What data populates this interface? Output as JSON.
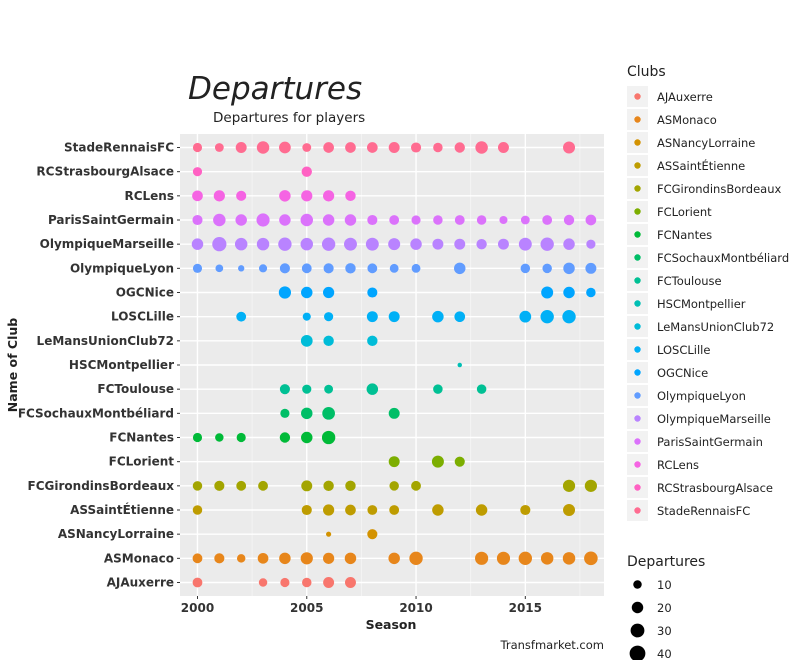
{
  "chart_data": {
    "type": "scatter",
    "title": "Departures",
    "subtitle": "Departures for players",
    "xlabel": "Season",
    "ylabel": "Name of Club",
    "caption": "Transfmarket.com",
    "xlim": [
      1999.2,
      2018.6
    ],
    "x_ticks": [
      2000,
      2005,
      2010,
      2015
    ],
    "grid": true,
    "legend_position": "right",
    "color_legend_title": "Clubs",
    "size_legend_title": "Departures",
    "size_legend_values": [
      10,
      20,
      30,
      40
    ],
    "categories": [
      "AJAuxerre",
      "ASMonaco",
      "ASNancyLorraine",
      "ASSaintÉtienne",
      "FCGirondinsBordeaux",
      "FCLorient",
      "FCNantes",
      "FCSochauxMontbéliard",
      "FCToulouse",
      "HSCMontpellier",
      "LeMansUnionClub72",
      "LOSCLille",
      "OGCNice",
      "OlympiqueLyon",
      "OlympiqueMarseille",
      "ParisSaintGermain",
      "RCLens",
      "RCStrasbourgAlsace",
      "StadeRennaisFC"
    ],
    "series": [
      {
        "name": "AJAuxerre",
        "color": "#F8766D",
        "x": [
          2000,
          2003,
          2004,
          2005,
          2006,
          2007
        ],
        "departures": [
          14,
          10,
          12,
          13,
          18,
          18
        ]
      },
      {
        "name": "ASMonaco",
        "color": "#E7861B",
        "x": [
          2000,
          2001,
          2002,
          2003,
          2004,
          2005,
          2006,
          2007,
          2009,
          2010,
          2013,
          2014,
          2015,
          2016,
          2017,
          2018
        ],
        "departures": [
          14,
          15,
          10,
          17,
          20,
          23,
          19,
          20,
          20,
          28,
          27,
          27,
          28,
          24,
          24,
          29
        ]
      },
      {
        "name": "ASNancyLorraine",
        "color": "#D39200",
        "x": [
          2006,
          2008
        ],
        "departures": [
          3,
          15
        ]
      },
      {
        "name": "ASSaintÉtienne",
        "color": "#BE9C00",
        "x": [
          2000,
          2005,
          2006,
          2007,
          2008,
          2009,
          2011,
          2013,
          2015,
          2017
        ],
        "departures": [
          13,
          15,
          19,
          17,
          14,
          14,
          20,
          20,
          15,
          22
        ]
      },
      {
        "name": "FCGirondinsBordeaux",
        "color": "#A3A500",
        "x": [
          2000,
          2001,
          2002,
          2003,
          2005,
          2006,
          2007,
          2009,
          2010,
          2017,
          2018
        ],
        "departures": [
          13,
          15,
          14,
          14,
          18,
          16,
          16,
          13,
          14,
          23,
          23
        ]
      },
      {
        "name": "FCLorient",
        "color": "#7CAE00",
        "x": [
          2009,
          2011,
          2012
        ],
        "departures": [
          18,
          22,
          15
        ]
      },
      {
        "name": "FCNantes",
        "color": "#00BA38",
        "x": [
          2000,
          2001,
          2002,
          2004,
          2005,
          2006
        ],
        "departures": [
          12,
          10,
          12,
          16,
          20,
          28
        ]
      },
      {
        "name": "FCSochauxMontbéliard",
        "color": "#00BE67",
        "x": [
          2004,
          2005,
          2006,
          2009
        ],
        "departures": [
          12,
          20,
          25,
          18
        ]
      },
      {
        "name": "FCToulouse",
        "color": "#00C094",
        "x": [
          2004,
          2005,
          2006,
          2008,
          2011,
          2013
        ],
        "departures": [
          15,
          12,
          11,
          20,
          13,
          13
        ]
      },
      {
        "name": "HSCMontpellier",
        "color": "#00BFB4",
        "x": [
          2012
        ],
        "departures": [
          2
        ]
      },
      {
        "name": "LeMansUnionClub72",
        "color": "#00BCD8",
        "x": [
          2005,
          2006,
          2008
        ],
        "departures": [
          21,
          16,
          16
        ]
      },
      {
        "name": "LOSCLille",
        "color": "#00B0F6",
        "x": [
          2002,
          2005,
          2006,
          2008,
          2009,
          2011,
          2012,
          2015,
          2016,
          2017
        ],
        "departures": [
          14,
          9,
          12,
          18,
          18,
          20,
          17,
          21,
          28,
          28
        ]
      },
      {
        "name": "OGCNice",
        "color": "#00A5FF",
        "x": [
          2004,
          2005,
          2006,
          2008,
          2016,
          2017,
          2018
        ],
        "departures": [
          23,
          20,
          19,
          15,
          22,
          20,
          13
        ]
      },
      {
        "name": "OlympiqueLyon",
        "color": "#619CFF",
        "x": [
          2000,
          2001,
          2002,
          2003,
          2004,
          2005,
          2006,
          2007,
          2008,
          2009,
          2010,
          2012,
          2015,
          2016,
          2017,
          2018
        ],
        "departures": [
          12,
          8,
          5,
          9,
          15,
          14,
          15,
          16,
          14,
          11,
          11,
          20,
          13,
          13,
          20,
          18
        ]
      },
      {
        "name": "OlympiqueMarseille",
        "color": "#B983FF",
        "x": [
          2000,
          2001,
          2002,
          2003,
          2004,
          2005,
          2006,
          2007,
          2008,
          2009,
          2010,
          2011,
          2012,
          2013,
          2014,
          2015,
          2016,
          2017,
          2018
        ],
        "departures": [
          20,
          32,
          24,
          24,
          28,
          24,
          28,
          26,
          26,
          22,
          20,
          18,
          18,
          16,
          18,
          26,
          28,
          20,
          12
        ]
      },
      {
        "name": "ParisSaintGermain",
        "color": "#DB72FB",
        "x": [
          2000,
          2001,
          2002,
          2003,
          2004,
          2005,
          2006,
          2007,
          2008,
          2009,
          2010,
          2011,
          2012,
          2013,
          2014,
          2015,
          2016,
          2017,
          2018
        ],
        "departures": [
          15,
          24,
          20,
          27,
          20,
          24,
          20,
          20,
          15,
          14,
          12,
          13,
          14,
          13,
          9,
          11,
          14,
          16,
          17
        ]
      },
      {
        "name": "RCLens",
        "color": "#F564E3",
        "x": [
          2000,
          2001,
          2002,
          2004,
          2005,
          2006,
          2007
        ],
        "departures": [
          17,
          19,
          15,
          20,
          19,
          19,
          16
        ]
      },
      {
        "name": "RCStrasbourgAlsace",
        "color": "#FF61C3",
        "x": [
          2000,
          2005
        ],
        "departures": [
          12,
          16
        ]
      },
      {
        "name": "StadeRennaisFC",
        "color": "#FF6C91",
        "x": [
          2000,
          2001,
          2002,
          2003,
          2004,
          2005,
          2006,
          2007,
          2008,
          2009,
          2010,
          2011,
          2012,
          2013,
          2014,
          2017
        ],
        "departures": [
          12,
          11,
          18,
          24,
          21,
          11,
          17,
          17,
          17,
          18,
          15,
          13,
          16,
          24,
          18,
          22
        ]
      }
    ]
  }
}
